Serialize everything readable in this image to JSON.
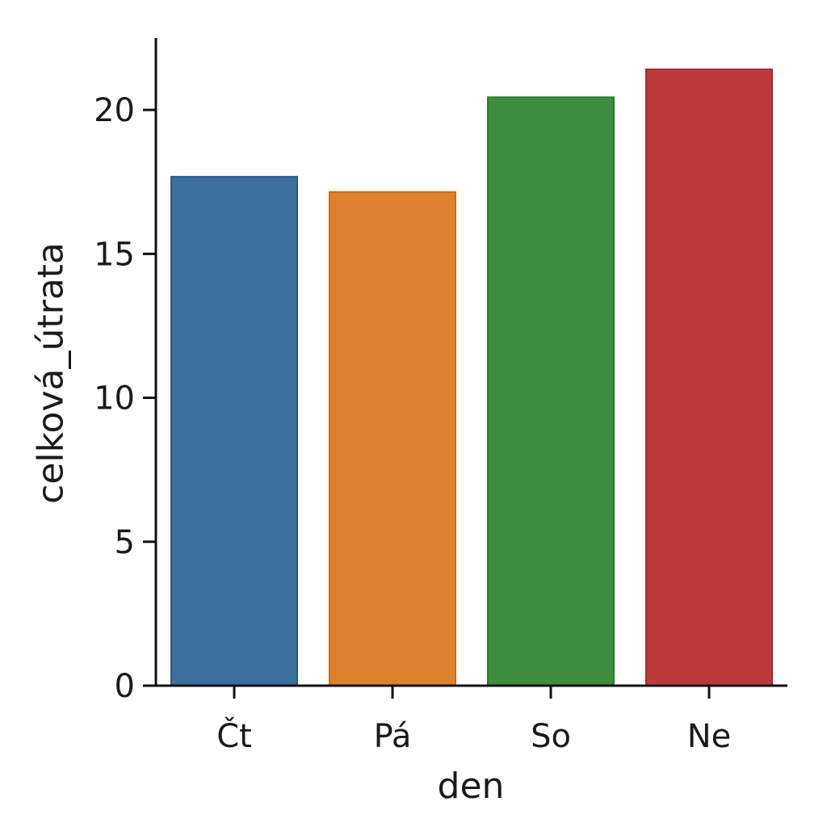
{
  "chart_data": {
    "type": "bar",
    "categories": [
      "Čt",
      "Pá",
      "So",
      "Ne"
    ],
    "values": [
      17.68,
      17.15,
      20.44,
      21.41
    ],
    "colors": [
      "#3a6f9e",
      "#dd812e",
      "#3d8f3d",
      "#be3a3a"
    ],
    "edge_colors": [
      "#2a5a86",
      "#c86a1a",
      "#2c7a2c",
      "#a82828"
    ],
    "title": "",
    "xlabel": "den",
    "ylabel": "celková_útrata",
    "ylim": [
      0,
      22.5
    ],
    "yticks": [
      0,
      5,
      10,
      15,
      20
    ],
    "ytick_labels": [
      "0",
      "5",
      "10",
      "15",
      "20"
    ],
    "grid": false,
    "legend": "none"
  }
}
